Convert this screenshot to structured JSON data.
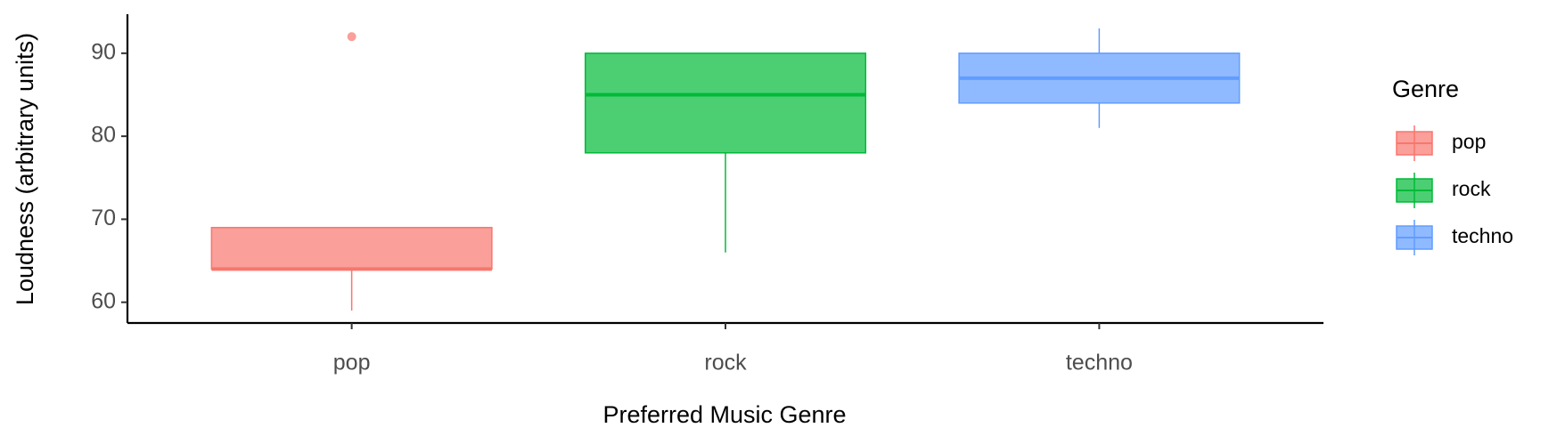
{
  "chart_data": {
    "type": "box",
    "x_label": "Preferred Music Genre",
    "y_label": "Loudness (arbitrary units)",
    "legend_title": "Genre",
    "categories": [
      "pop",
      "rock",
      "techno"
    ],
    "series": [
      {
        "name": "pop",
        "color": "#F8766D",
        "min": 59,
        "q1": 64,
        "median": 64,
        "q3": 69,
        "max": 69,
        "outliers": [
          92
        ]
      },
      {
        "name": "rock",
        "color": "#00BA38",
        "min": 66,
        "q1": 78,
        "median": 85,
        "q3": 90,
        "max": 90,
        "outliers": []
      },
      {
        "name": "techno",
        "color": "#619CFF",
        "min": 81,
        "q1": 84,
        "median": 87,
        "q3": 90,
        "max": 93,
        "outliers": []
      }
    ],
    "ylim": [
      57.5,
      94.7
    ],
    "yticks": [
      60,
      70,
      80,
      90
    ],
    "grid": false,
    "legend": "right"
  }
}
